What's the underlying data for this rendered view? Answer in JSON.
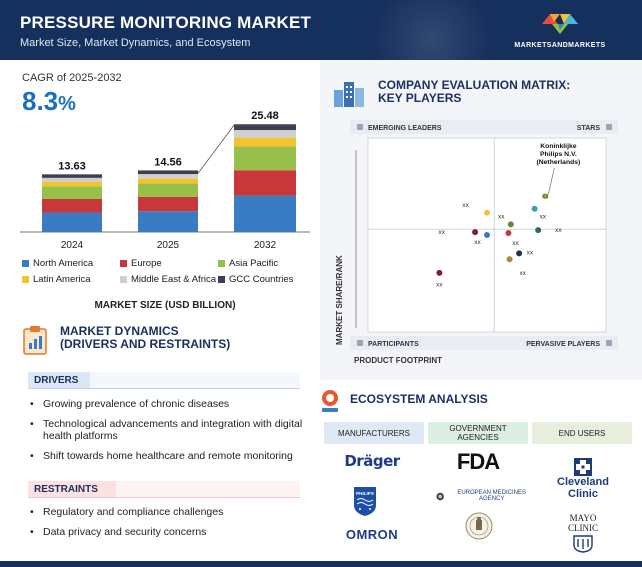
{
  "header": {
    "title": "PRESSURE MONITORING MARKET",
    "subtitle": "Market Size, Market Dynamics, and Ecosystem",
    "logo_text": "MARKETSANDMARKETS"
  },
  "cagr": {
    "label": "CAGR of 2025-2032",
    "value": "8.3",
    "unit": "%"
  },
  "chart_data": {
    "type": "bar",
    "stacked": true,
    "categories": [
      "2024",
      "2025",
      "2032"
    ],
    "totals": [
      13.63,
      14.56,
      25.48
    ],
    "total_labels": [
      "13.63",
      "14.56",
      "25.48"
    ],
    "series": [
      {
        "name": "North America",
        "color": "#3a7cc4",
        "values": [
          4.6,
          4.9,
          8.6
        ]
      },
      {
        "name": "Europe",
        "color": "#c8373a",
        "values": [
          3.2,
          3.4,
          6.0
        ]
      },
      {
        "name": "Asia Pacific",
        "color": "#98bf4a",
        "values": [
          3.0,
          3.2,
          5.6
        ]
      },
      {
        "name": "Latin America",
        "color": "#f4c430",
        "values": [
          1.1,
          1.2,
          2.1
        ]
      },
      {
        "name": "Middle East & Africa",
        "color": "#cfcfcf",
        "values": [
          0.9,
          1.0,
          1.8
        ]
      },
      {
        "name": "GCC Countries",
        "color": "#3a3f52",
        "values": [
          0.83,
          0.86,
          1.38
        ]
      }
    ],
    "ylim": [
      0,
      26
    ],
    "xlabel": "MARKET SIZE (USD BILLION)"
  },
  "dynamics": {
    "title_line1": "MARKET DYNAMICS",
    "title_line2": "(DRIVERS AND RESTRAINTS)",
    "drivers_label": "DRIVERS",
    "drivers": [
      "Growing prevalence of chronic diseases",
      "Technological advancements and integration with digital health platforms",
      "Shift towards home healthcare and remote monitoring"
    ],
    "restraints_label": "RESTRAINTS",
    "restraints": [
      "Regulatory and compliance challenges",
      "Data privacy and security concerns"
    ]
  },
  "matrix": {
    "title_line1": "COMPANY EVALUATION MATRIX:",
    "title_line2": "KEY PLAYERS",
    "quadrants": {
      "top_left": "EMERGING LEADERS",
      "top_right": "STARS",
      "bottom_left": "PARTICIPANTS",
      "bottom_right": "PERVASIVE PLAYERS"
    },
    "y_axis": "MARKET SHARE/RANK",
    "x_axis": "PRODUCT FOOTPRINT",
    "highlight_label": [
      "Koninklijke",
      "Philips N.V.",
      "(Netherlands)"
    ],
    "players": [
      {
        "label": "xx",
        "color": "#a7c24d",
        "fx": 0.745,
        "fy": 0.3,
        "lx": 0.745,
        "ly": 0.3
      },
      {
        "label": "xx",
        "color": "#3aa0b5",
        "fx": 0.7,
        "fy": 0.365,
        "lx": 0.735,
        "ly": 0.405
      },
      {
        "label": "xx",
        "color": "#f4c430",
        "fx": 0.5,
        "fy": 0.385,
        "lx": 0.41,
        "ly": 0.345
      },
      {
        "label": "xx",
        "color": "#5b8c3a",
        "fx": 0.6,
        "fy": 0.445,
        "lx": 0.56,
        "ly": 0.405
      },
      {
        "label": "xx",
        "color": "#2f6e4e",
        "fx": 0.715,
        "fy": 0.475,
        "lx": 0.8,
        "ly": 0.475
      },
      {
        "label": "xx",
        "color": "#7a2233",
        "fx": 0.45,
        "fy": 0.485,
        "lx": 0.31,
        "ly": 0.485
      },
      {
        "label": "xx",
        "color": "#3a7cc4",
        "fx": 0.5,
        "fy": 0.5,
        "lx": 0.46,
        "ly": 0.535
      },
      {
        "label": "xx",
        "color": "#c8373a",
        "fx": 0.59,
        "fy": 0.49,
        "lx": 0.62,
        "ly": 0.54
      },
      {
        "label": "xx",
        "color": "#1e2f5a",
        "fx": 0.635,
        "fy": 0.595,
        "lx": 0.68,
        "ly": 0.59
      },
      {
        "label": "xx",
        "color": "#b08a3a",
        "fx": 0.595,
        "fy": 0.625,
        "lx": 0.65,
        "ly": 0.695
      },
      {
        "label": "xx",
        "color": "#7a2233",
        "fx": 0.3,
        "fy": 0.695,
        "lx": 0.3,
        "ly": 0.755
      }
    ]
  },
  "ecosystem": {
    "title": "ECOSYSTEM ANALYSIS",
    "columns": [
      "MANUFACTURERS",
      "GOVERNMENT AGENCIES",
      "END USERS"
    ],
    "manufacturers": [
      "Dräger",
      "PHILIPS",
      "OMRON"
    ],
    "agencies": [
      "FDA",
      "EUROPEAN MEDICINES AGENCY"
    ],
    "end_users": [
      "Cleveland Clinic",
      "MAYO CLINIC"
    ]
  }
}
